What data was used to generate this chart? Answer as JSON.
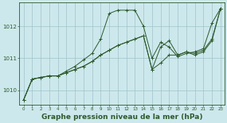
{
  "bg_color": "#cde8ec",
  "grid_color": "#9ec4ca",
  "line_color": "#2d5a2d",
  "xlabel": "Graphe pression niveau de la mer (hPa)",
  "xlabel_fontsize": 6.5,
  "yticks": [
    1010,
    1011,
    1012
  ],
  "xticks": [
    0,
    1,
    2,
    3,
    4,
    5,
    6,
    7,
    8,
    9,
    10,
    11,
    12,
    13,
    14,
    15,
    16,
    17,
    18,
    19,
    20,
    21,
    22,
    23
  ],
  "xlim": [
    -0.5,
    23.5
  ],
  "ylim": [
    1009.55,
    1012.75
  ],
  "series1_x": [
    0,
    1,
    2,
    3,
    4,
    5,
    6,
    7,
    8,
    9,
    10,
    11,
    12,
    13,
    14,
    15,
    16,
    17,
    18,
    19,
    20,
    21,
    22,
    23
  ],
  "series1_y": [
    1009.7,
    1010.35,
    1010.4,
    1010.45,
    1010.45,
    1010.55,
    1010.65,
    1010.75,
    1010.9,
    1011.1,
    1011.25,
    1011.4,
    1011.5,
    1011.6,
    1011.7,
    1010.65,
    1010.85,
    1011.1,
    1011.1,
    1011.2,
    1011.15,
    1011.25,
    1011.6,
    1012.55
  ],
  "series2_x": [
    0,
    1,
    2,
    3,
    4,
    5,
    6,
    7,
    8,
    9,
    10,
    11,
    12,
    13,
    14,
    15,
    16,
    17,
    18,
    19,
    20,
    21,
    22,
    23
  ],
  "series2_y": [
    1009.7,
    1010.35,
    1010.4,
    1010.45,
    1010.45,
    1010.6,
    1010.75,
    1010.95,
    1011.15,
    1011.6,
    1012.4,
    1012.5,
    1012.5,
    1012.5,
    1012.0,
    1011.0,
    1011.5,
    1011.35,
    1011.05,
    1011.15,
    1011.2,
    1011.3,
    1012.1,
    1012.55
  ],
  "series3_x": [
    0,
    1,
    2,
    3,
    4,
    5,
    6,
    7,
    8,
    9,
    10,
    11,
    12,
    13,
    14,
    15,
    16,
    17,
    18,
    19,
    20,
    21,
    22,
    23
  ],
  "series3_y": [
    1009.7,
    1010.35,
    1010.4,
    1010.45,
    1010.45,
    1010.55,
    1010.65,
    1010.75,
    1010.9,
    1011.1,
    1011.25,
    1011.4,
    1011.5,
    1011.6,
    1011.7,
    1010.65,
    1011.35,
    1011.55,
    1011.1,
    1011.2,
    1011.1,
    1011.2,
    1011.55,
    1012.55
  ]
}
